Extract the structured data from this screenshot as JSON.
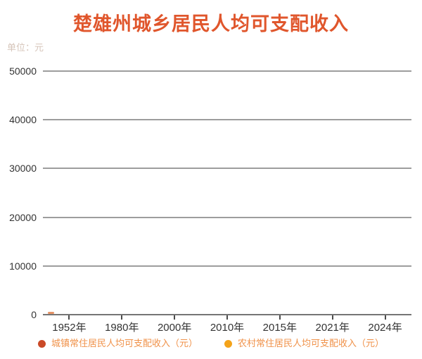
{
  "header": {
    "title": "楚雄州城乡居民人均可支配收入",
    "unit_label": "单位：元"
  },
  "chart_data": {
    "type": "line",
    "title": "楚雄州城乡居民人均可支配收入",
    "ylabel": "单位：元",
    "categories": [
      "1952年",
      "1980年",
      "2000年",
      "2010年",
      "2015年",
      "2021年",
      "2024年"
    ],
    "series": [
      {
        "name": "城镇常住居民人均可支配收入（元）",
        "color": "#ca4a28",
        "values": []
      },
      {
        "name": "农村常住居民人均可支配收入（元）",
        "color": "#f4a31a",
        "values": []
      }
    ],
    "ylim": [
      0,
      50000
    ],
    "y_ticks": [
      0,
      10000,
      20000,
      30000,
      40000,
      50000
    ],
    "grid": true,
    "legend_position": "bottom",
    "visible_note": "animation start frame — series lines not yet drawn; tiny urban line segment visible at baseline near 1952年 (value ≈ 0)"
  },
  "legend": {
    "items": [
      {
        "label": "城镇常住居民人均可支配收入（元）",
        "color": "#ca4a28"
      },
      {
        "label": "农村常住居民人均可支配收入（元）",
        "color": "#f4a31a"
      }
    ]
  },
  "colors": {
    "title": "#e0562c",
    "unit_label": "#d6c5ba",
    "axis_label": "#333333",
    "gridline": "#9d9d9d",
    "baseline": "#757575",
    "legend_text": "#f0924a",
    "line_start_segment": "#df7840",
    "background": "#ffffff"
  }
}
